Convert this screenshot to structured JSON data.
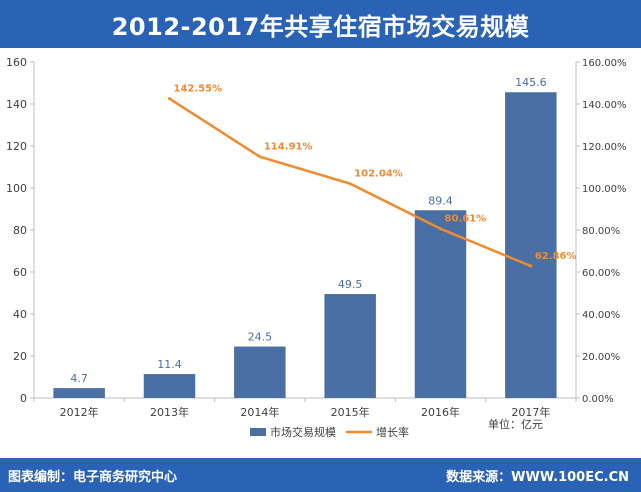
{
  "chart_data": {
    "type": "bar",
    "title": "2012-2017年共享住宿市场交易规模",
    "categories": [
      "2012年",
      "2013年",
      "2014年",
      "2015年",
      "2016年",
      "2017年"
    ],
    "series": [
      {
        "name": "市场交易规模",
        "type": "bar",
        "axis": "left",
        "color": "#4a6fa5",
        "values": [
          4.7,
          11.4,
          24.5,
          49.5,
          89.4,
          145.6
        ],
        "labels": [
          "4.7",
          "11.4",
          "24.5",
          "49.5",
          "89.4",
          "145.6"
        ]
      },
      {
        "name": "增长率",
        "type": "line",
        "axis": "right",
        "color": "#f28a2e",
        "values": [
          null,
          142.55,
          114.91,
          102.04,
          80.61,
          62.86
        ],
        "labels": [
          "",
          "142.55%",
          "114.91%",
          "102.04%",
          "80.61%",
          "62.86%"
        ]
      }
    ],
    "y_left": {
      "min": 0,
      "max": 160,
      "ticks": [
        "0",
        "20",
        "40",
        "60",
        "80",
        "100",
        "120",
        "140",
        "160"
      ]
    },
    "y_right": {
      "min": 0,
      "max": 160,
      "ticks": [
        "0.00%",
        "20.00%",
        "40.00%",
        "60.00%",
        "80.00%",
        "100.00%",
        "120.00%",
        "140.00%",
        "160.00%"
      ]
    },
    "unit_label": "单位：亿元",
    "legend_position": "bottom",
    "grid": false
  },
  "footer": {
    "left": "图表编制：电子商务研究中心",
    "right": "数据来源：WWW.100EC.CN"
  },
  "colors": {
    "header_bg": "#2a62b6",
    "bar": "#4a6fa5",
    "line": "#f28a2e"
  }
}
